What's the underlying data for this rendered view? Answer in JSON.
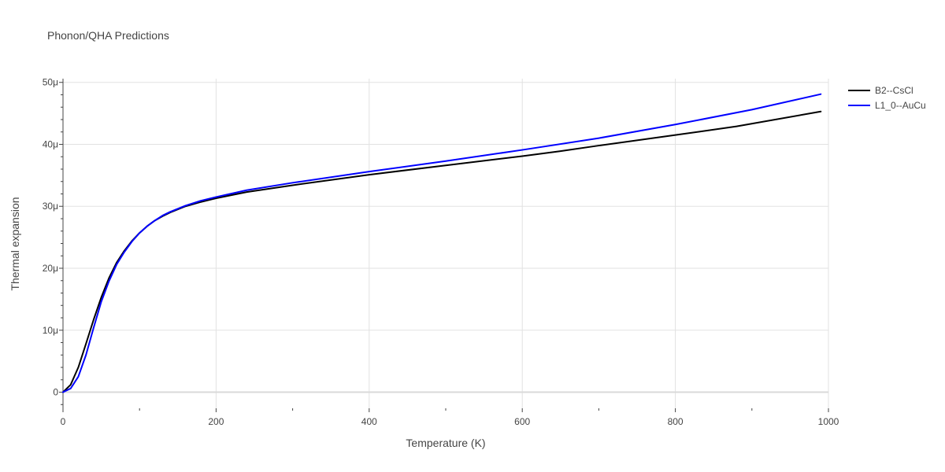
{
  "chart_data": {
    "type": "line",
    "title": "Phonon/QHA Predictions",
    "xlabel": "Temperature (K)",
    "ylabel": "Thermal expansion",
    "xlim": [
      0,
      1000
    ],
    "ylim": [
      -2.6,
      50.6
    ],
    "x_ticks": [
      0,
      200,
      400,
      600,
      800,
      1000
    ],
    "x_tick_labels": [
      "0",
      "200",
      "400",
      "600",
      "800",
      "1000"
    ],
    "y_ticks": [
      0,
      10,
      20,
      30,
      40,
      50
    ],
    "y_tick_labels": [
      "0",
      "10μ",
      "20μ",
      "30μ",
      "40μ",
      "50μ"
    ],
    "grid": true,
    "legend_position": "top-right",
    "series": [
      {
        "name": "B2--CsCl",
        "color": "#000000",
        "x": [
          0,
          10,
          20,
          30,
          40,
          50,
          60,
          70,
          80,
          90,
          100,
          110,
          120,
          130,
          140,
          160,
          180,
          200,
          240,
          300,
          400,
          500,
          600,
          650,
          700,
          800,
          880,
          990
        ],
        "y": [
          0,
          1.2,
          4.0,
          7.8,
          11.7,
          15.3,
          18.4,
          20.9,
          22.8,
          24.4,
          25.7,
          26.8,
          27.7,
          28.4,
          29.0,
          30.0,
          30.7,
          31.3,
          32.3,
          33.4,
          35.1,
          36.6,
          38.1,
          38.9,
          39.8,
          41.5,
          42.9,
          45.3
        ]
      },
      {
        "name": "L1_0--AuCu",
        "color": "#0000ff",
        "x": [
          0,
          10,
          20,
          30,
          40,
          50,
          60,
          70,
          80,
          90,
          100,
          110,
          120,
          130,
          140,
          160,
          180,
          200,
          240,
          300,
          400,
          500,
          600,
          700,
          800,
          900,
          990
        ],
        "y": [
          0,
          0.6,
          2.5,
          6.0,
          10.4,
          14.6,
          17.9,
          20.6,
          22.6,
          24.3,
          25.7,
          26.8,
          27.7,
          28.5,
          29.1,
          30.1,
          30.9,
          31.5,
          32.6,
          33.8,
          35.6,
          37.3,
          39.1,
          41.0,
          43.2,
          45.6,
          48.1
        ]
      }
    ]
  }
}
